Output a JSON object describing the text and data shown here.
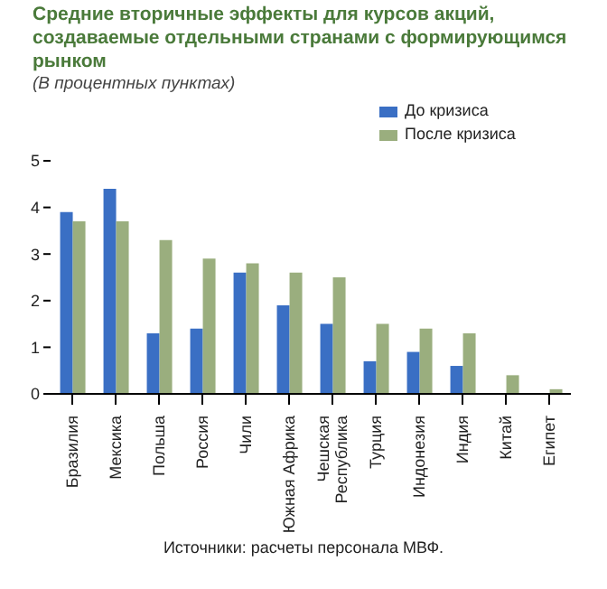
{
  "chart_data": {
    "type": "bar",
    "title": "Средние вторичные эффекты для курсов акций, создаваемые отдельными странами с формирующимся рынком",
    "subtitle": "(В процентных пунктах)",
    "categories": [
      "Бразилия",
      "Мексика",
      "Польша",
      "Россия",
      "Чили",
      "Южная Африка",
      "Чешская Республика",
      "Турция",
      "Индонезия",
      "Индия",
      "Китай",
      "Египет"
    ],
    "series": [
      {
        "name": "До кризиса",
        "color": "#3a6fc4",
        "values": [
          3.9,
          4.4,
          1.3,
          1.4,
          2.6,
          1.9,
          1.5,
          0.7,
          0.9,
          0.6,
          null,
          null
        ]
      },
      {
        "name": "После кризиса",
        "color": "#9aae7e",
        "values": [
          3.7,
          3.7,
          3.3,
          2.9,
          2.8,
          2.6,
          2.5,
          1.5,
          1.4,
          1.3,
          0.4,
          0.1
        ]
      }
    ],
    "ylim": [
      0,
      5
    ],
    "yticks": [
      0,
      1,
      2,
      3,
      4,
      5
    ],
    "legend": "top right",
    "annotations": [
      "Источники: расчеты персонала МВФ."
    ]
  }
}
